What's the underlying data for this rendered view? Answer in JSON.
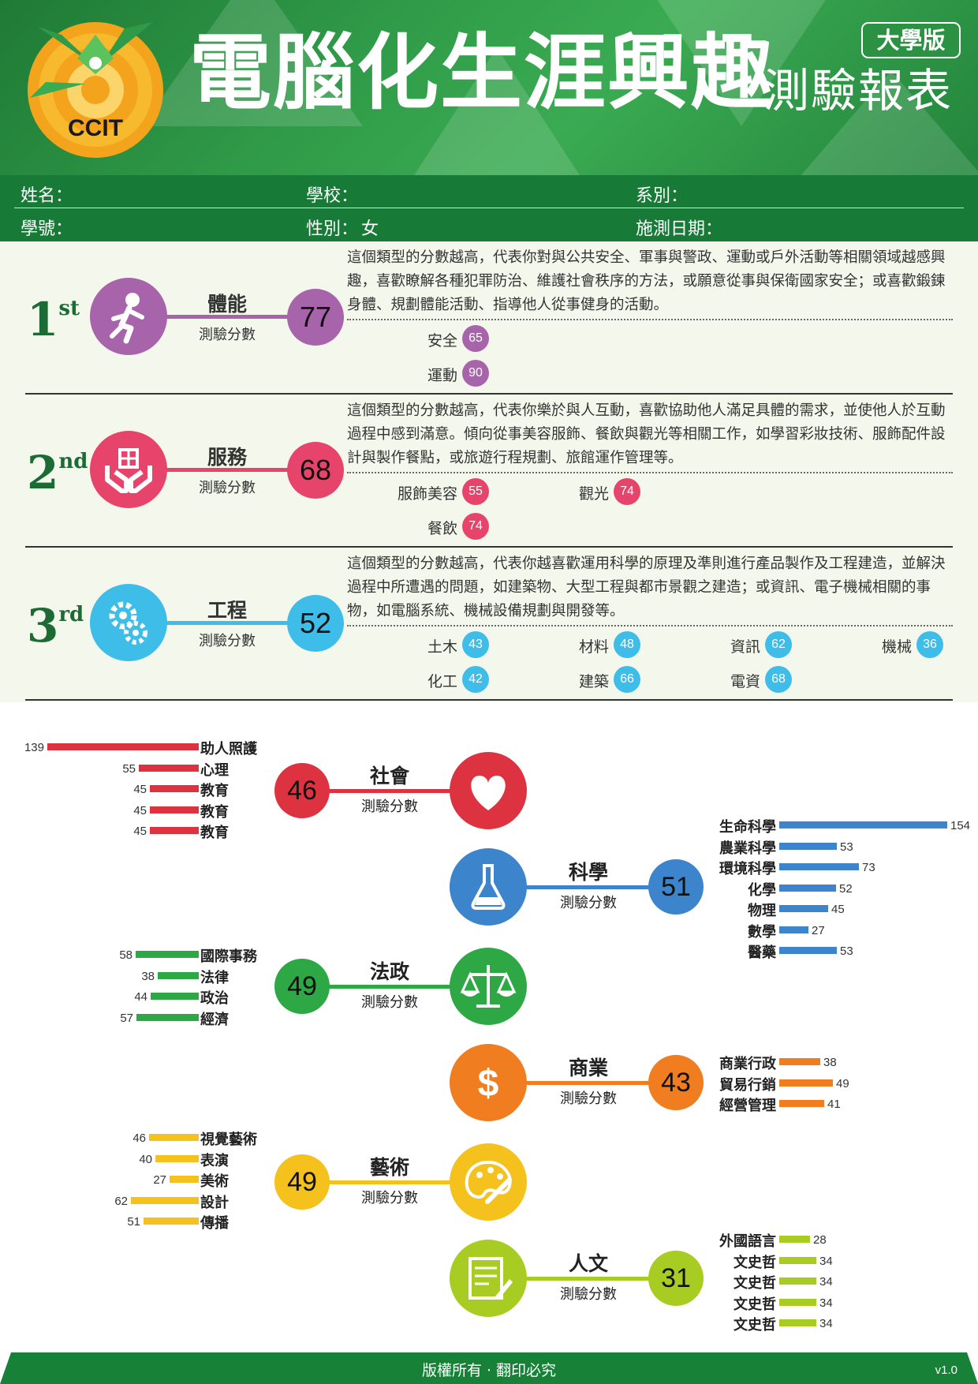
{
  "header": {
    "logo_text": "CCIT",
    "title_main": "電腦化生涯興趣",
    "title_sub": "測驗報表",
    "edition": "大學版",
    "colors": {
      "green_dark": "#1f7a35",
      "green_light": "#3aab52",
      "logo_orange": "#f4a41c"
    }
  },
  "info": {
    "name_label": "姓名：",
    "school_label": "學校：",
    "dept_label": "系別：",
    "id_label": "學號：",
    "gender_label": "性別：",
    "gender_value": "女",
    "date_label": "施測日期："
  },
  "score_sub": "測驗分數",
  "top3": [
    {
      "ordinal": "1",
      "ordinal_sup": "st",
      "icon": "running-person-icon",
      "color": "#a864ab",
      "name": "體能",
      "score": "77",
      "description": "這個類型的分數越高，代表你對與公共安全、軍事與警政、運動或戶外活動等相關領域越感興趣，喜歡瞭解各種犯罪防治、維護社會秩序的方法，或願意從事與保衛國家安全；或喜歡鍛鍊身體、規劃體能活動、指導他人從事健身的活動。",
      "subs": [
        {
          "label": "安全",
          "score": "65"
        },
        {
          "label": "運動",
          "score": "90"
        }
      ]
    },
    {
      "ordinal": "2",
      "ordinal_sup": "nd",
      "icon": "hands-service-icon",
      "color": "#e6446a",
      "name": "服務",
      "score": "68",
      "description": "這個類型的分數越高，代表你樂於與人互動，喜歡協助他人滿足具體的需求，並使他人於互動過程中感到滿意。傾向從事美容服飾、餐飲與觀光等相關工作，如學習彩妝技術、服飾配件設計與製作餐點，或旅遊行程規劃、旅館運作管理等。",
      "subs": [
        {
          "label": "服飾美容",
          "score": "55"
        },
        {
          "label": "觀光",
          "score": "74"
        },
        {
          "label": "餐飲",
          "score": "74"
        }
      ]
    },
    {
      "ordinal": "3",
      "ordinal_sup": "rd",
      "icon": "gears-icon",
      "color": "#3ebde9",
      "name": "工程",
      "score": "52",
      "description": "這個類型的分數越高，代表你越喜歡運用科學的原理及準則進行產品製作及工程建造，並解決過程中所遭遇的問題，如建築物、大型工程與都市景觀之建造；或資訊、電子機械相關的事物，如電腦系統、機械設備規劃與開發等。",
      "subs": [
        {
          "label": "土木",
          "score": "43"
        },
        {
          "label": "材料",
          "score": "48"
        },
        {
          "label": "資訊",
          "score": "62"
        },
        {
          "label": "機械",
          "score": "36"
        },
        {
          "label": "化工",
          "score": "42"
        },
        {
          "label": "建築",
          "score": "66"
        },
        {
          "label": "電資",
          "score": "68"
        }
      ]
    }
  ],
  "chart_data": [
    {
      "type": "bar",
      "name": "社會",
      "score": "46",
      "icon": "heart-icon",
      "color": "#dd3341",
      "categories": [
        "助人照護",
        "心理",
        "教育",
        "教育",
        "教育"
      ],
      "values": [
        139,
        55,
        45,
        45,
        45
      ]
    },
    {
      "type": "bar",
      "name": "科學",
      "score": "51",
      "icon": "flask-icon",
      "color": "#3c85cc",
      "categories": [
        "生命科學",
        "農業科學",
        "環境科學",
        "化學",
        "物理",
        "數學",
        "醫藥"
      ],
      "values": [
        154,
        53,
        73,
        52,
        45,
        27,
        53
      ]
    },
    {
      "type": "bar",
      "name": "法政",
      "score": "49",
      "icon": "scales-icon",
      "color": "#2ea845",
      "categories": [
        "國際事務",
        "法律",
        "政治",
        "經濟"
      ],
      "values": [
        58,
        38,
        44,
        57
      ]
    },
    {
      "type": "bar",
      "name": "商業",
      "score": "43",
      "icon": "dollar-icon",
      "color": "#f07d20",
      "categories": [
        "商業行政",
        "貿易行銷",
        "經營管理"
      ],
      "values": [
        38,
        49,
        41
      ]
    },
    {
      "type": "bar",
      "name": "藝術",
      "score": "49",
      "icon": "palette-icon",
      "color": "#f5c11d",
      "categories": [
        "視覺藝術",
        "表演",
        "美術",
        "設計",
        "傳播"
      ],
      "values": [
        46,
        40,
        27,
        62,
        51
      ]
    },
    {
      "type": "bar",
      "name": "人文",
      "score": "31",
      "icon": "writing-icon",
      "color": "#a8cc22",
      "categories": [
        "外國語言",
        "文史哲",
        "文史哲",
        "文史哲",
        "文史哲"
      ],
      "values": [
        28,
        34,
        34,
        34,
        34
      ]
    }
  ],
  "footer": {
    "text": "版權所有 · 翻印必究",
    "version": "v1.0"
  }
}
